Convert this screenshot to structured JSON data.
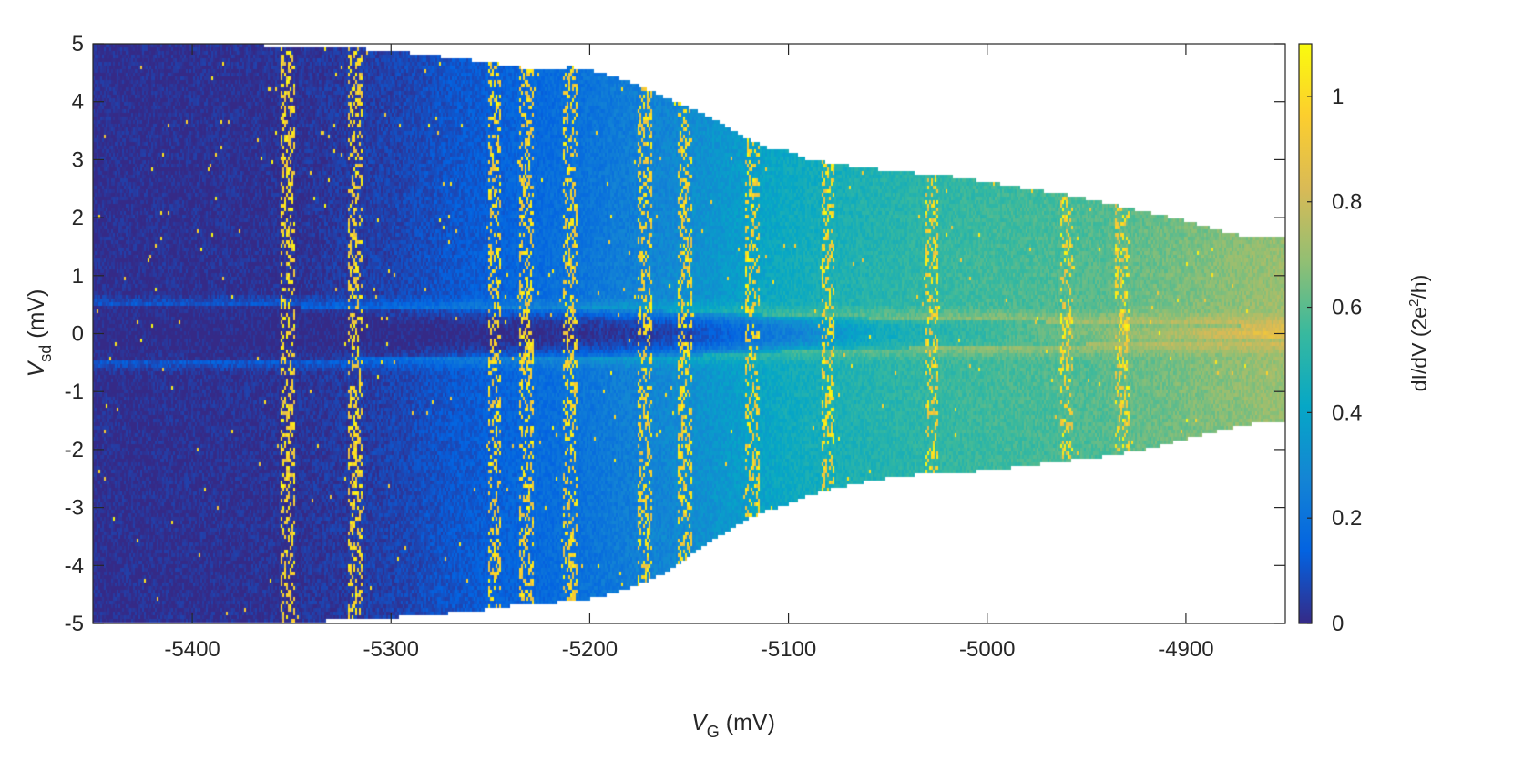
{
  "chart_data": {
    "type": "heatmap",
    "title": "",
    "x_axis": {
      "label_main": "V",
      "label_sub": "G",
      "label_unit": " (mV)",
      "range": [
        -5450,
        -4850
      ],
      "ticks": [
        -5400,
        -5300,
        -5200,
        -5100,
        -5000,
        -4900
      ],
      "tick_labels": [
        "-5400",
        "-5300",
        "-5200",
        "-5100",
        "-5000",
        "-4900"
      ]
    },
    "y_axis": {
      "label_main": "V",
      "label_sub": "sd",
      "label_unit": " (mV)",
      "range": [
        -5,
        5
      ],
      "ticks": [
        -5,
        -4,
        -3,
        -2,
        -1,
        0,
        1,
        2,
        3,
        4,
        5
      ],
      "tick_labels": [
        "-5",
        "-4",
        "-3",
        "-2",
        "-1",
        "0",
        "1",
        "2",
        "3",
        "4",
        "5"
      ]
    },
    "colorbar": {
      "label_part1": "dI/dV (2e",
      "label_sup": "2",
      "label_part2": "/h)",
      "range": [
        0,
        1.1
      ],
      "ticks": [
        0,
        0.2,
        0.4,
        0.6,
        0.8,
        1
      ],
      "tick_labels": [
        "0",
        "0.2",
        "0.4",
        "0.6",
        "0.8",
        "1"
      ],
      "colormap": "parula",
      "colormap_stops": [
        "#352a87",
        "#0363e1",
        "#1485d4",
        "#06a7c6",
        "#38b99e",
        "#92bf73",
        "#d9ba56",
        "#fcce2e",
        "#f9fb0e"
      ]
    },
    "data_envelope": {
      "description_free": true,
      "vg": [
        -5450,
        -5420,
        -5380,
        -5350,
        -5320,
        -5300,
        -5280,
        -5260,
        -5250,
        -5240,
        -5230,
        -5220,
        -5210,
        -5200,
        -5190,
        -5180,
        -5170,
        -5160,
        -5150,
        -5140,
        -5130,
        -5120,
        -5110,
        -5100,
        -5090,
        -5080,
        -5060,
        -5040,
        -5020,
        -5000,
        -4980,
        -4960,
        -4940,
        -4920,
        -4900,
        -4880,
        -4865,
        -4850
      ],
      "vsd_max": [
        5,
        5,
        4.99,
        4.95,
        4.92,
        4.88,
        4.8,
        4.72,
        4.68,
        4.62,
        4.57,
        4.55,
        4.6,
        4.55,
        4.45,
        4.35,
        4.2,
        4.05,
        3.9,
        3.75,
        3.55,
        3.35,
        3.2,
        3.15,
        3.0,
        2.95,
        2.85,
        2.78,
        2.72,
        2.62,
        2.5,
        2.4,
        2.25,
        2.1,
        1.95,
        1.75,
        1.65,
        1.65
      ],
      "vsd_min": [
        -5,
        -5,
        -4.99,
        -4.97,
        -4.94,
        -4.9,
        -4.85,
        -4.8,
        -4.75,
        -4.7,
        -4.7,
        -4.65,
        -4.62,
        -4.58,
        -4.5,
        -4.4,
        -4.25,
        -4.1,
        -3.85,
        -3.6,
        -3.4,
        -3.2,
        -3.05,
        -2.95,
        -2.8,
        -2.7,
        -2.55,
        -2.45,
        -2.4,
        -2.37,
        -2.28,
        -2.2,
        -2.12,
        -2.0,
        -1.82,
        -1.65,
        -1.55,
        -1.55
      ]
    },
    "conductance_profile": {
      "vg": [
        -5450,
        -5350,
        -5300,
        -5250,
        -5200,
        -5150,
        -5100,
        -5050,
        -5000,
        -4950,
        -4900,
        -4850
      ],
      "background_dIdV": [
        0.01,
        0.02,
        0.06,
        0.14,
        0.22,
        0.32,
        0.45,
        0.52,
        0.57,
        0.6,
        0.66,
        0.72
      ],
      "zero_bias_dip_dIdV": [
        0.0,
        0.0,
        0.0,
        0.0,
        0.02,
        0.08,
        0.25,
        0.45,
        0.55,
        0.65,
        0.75,
        0.9
      ],
      "gap_edge_vsd": [
        0.45,
        0.45,
        0.42,
        0.4,
        0.4,
        0.38,
        0.3,
        0.25,
        0.22,
        0.18,
        0.15,
        0.12
      ]
    },
    "bright_streaks_vg": [
      -5352,
      -5318,
      -5248,
      -5232,
      -5210,
      -5172,
      -5152,
      -5118,
      -5080,
      -5028,
      -4960,
      -4932
    ],
    "grid": false
  }
}
